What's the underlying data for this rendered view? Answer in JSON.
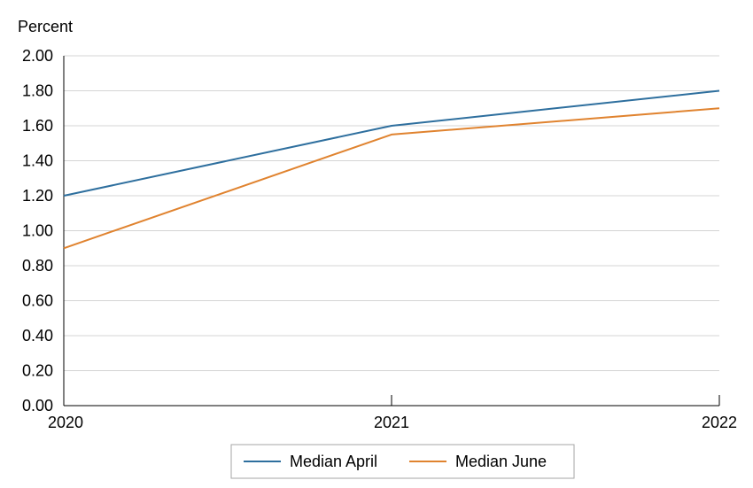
{
  "chart_data": {
    "type": "line",
    "title": "",
    "xlabel": "",
    "ylabel": "Percent",
    "x": [
      "2020",
      "2021",
      "2022"
    ],
    "ylim": [
      0,
      2
    ],
    "yticks": [
      "0.00",
      "0.20",
      "0.40",
      "0.60",
      "0.80",
      "1.00",
      "1.20",
      "1.40",
      "1.60",
      "1.80",
      "2.00"
    ],
    "grid": true,
    "legend_position": "bottom-center",
    "series": [
      {
        "name": "Median April",
        "color": "#2e6f9e",
        "values": [
          1.2,
          1.6,
          1.8
        ]
      },
      {
        "name": "Median June",
        "color": "#e0832f",
        "values": [
          0.9,
          1.55,
          1.7
        ]
      }
    ]
  }
}
